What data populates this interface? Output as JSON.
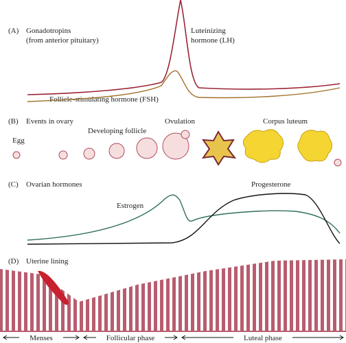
{
  "panel_a": {
    "label": "(A)",
    "title": "Gonadotropins",
    "subtitle": "(from anterior pituitary)",
    "lh_label": [
      "Luteinizing",
      "hormone (LH)"
    ],
    "fsh_label": "Follicle-stimulating hormone (FSH)"
  },
  "panel_b": {
    "label": "(B)",
    "title": "Events in ovary",
    "egg": "Egg",
    "developing": "Developing follicle",
    "ovulation": "Ovulation",
    "corpus": "Corpus luteum"
  },
  "panel_c": {
    "label": "(C)",
    "title": "Ovarian hormones",
    "estrogen": "Estrogen",
    "progesterone": "Progesterone"
  },
  "panel_d": {
    "label": "(D)",
    "title": "Uterine lining"
  },
  "phases": [
    "Menses",
    "Follicular phase",
    "Luteal phase"
  ]
}
